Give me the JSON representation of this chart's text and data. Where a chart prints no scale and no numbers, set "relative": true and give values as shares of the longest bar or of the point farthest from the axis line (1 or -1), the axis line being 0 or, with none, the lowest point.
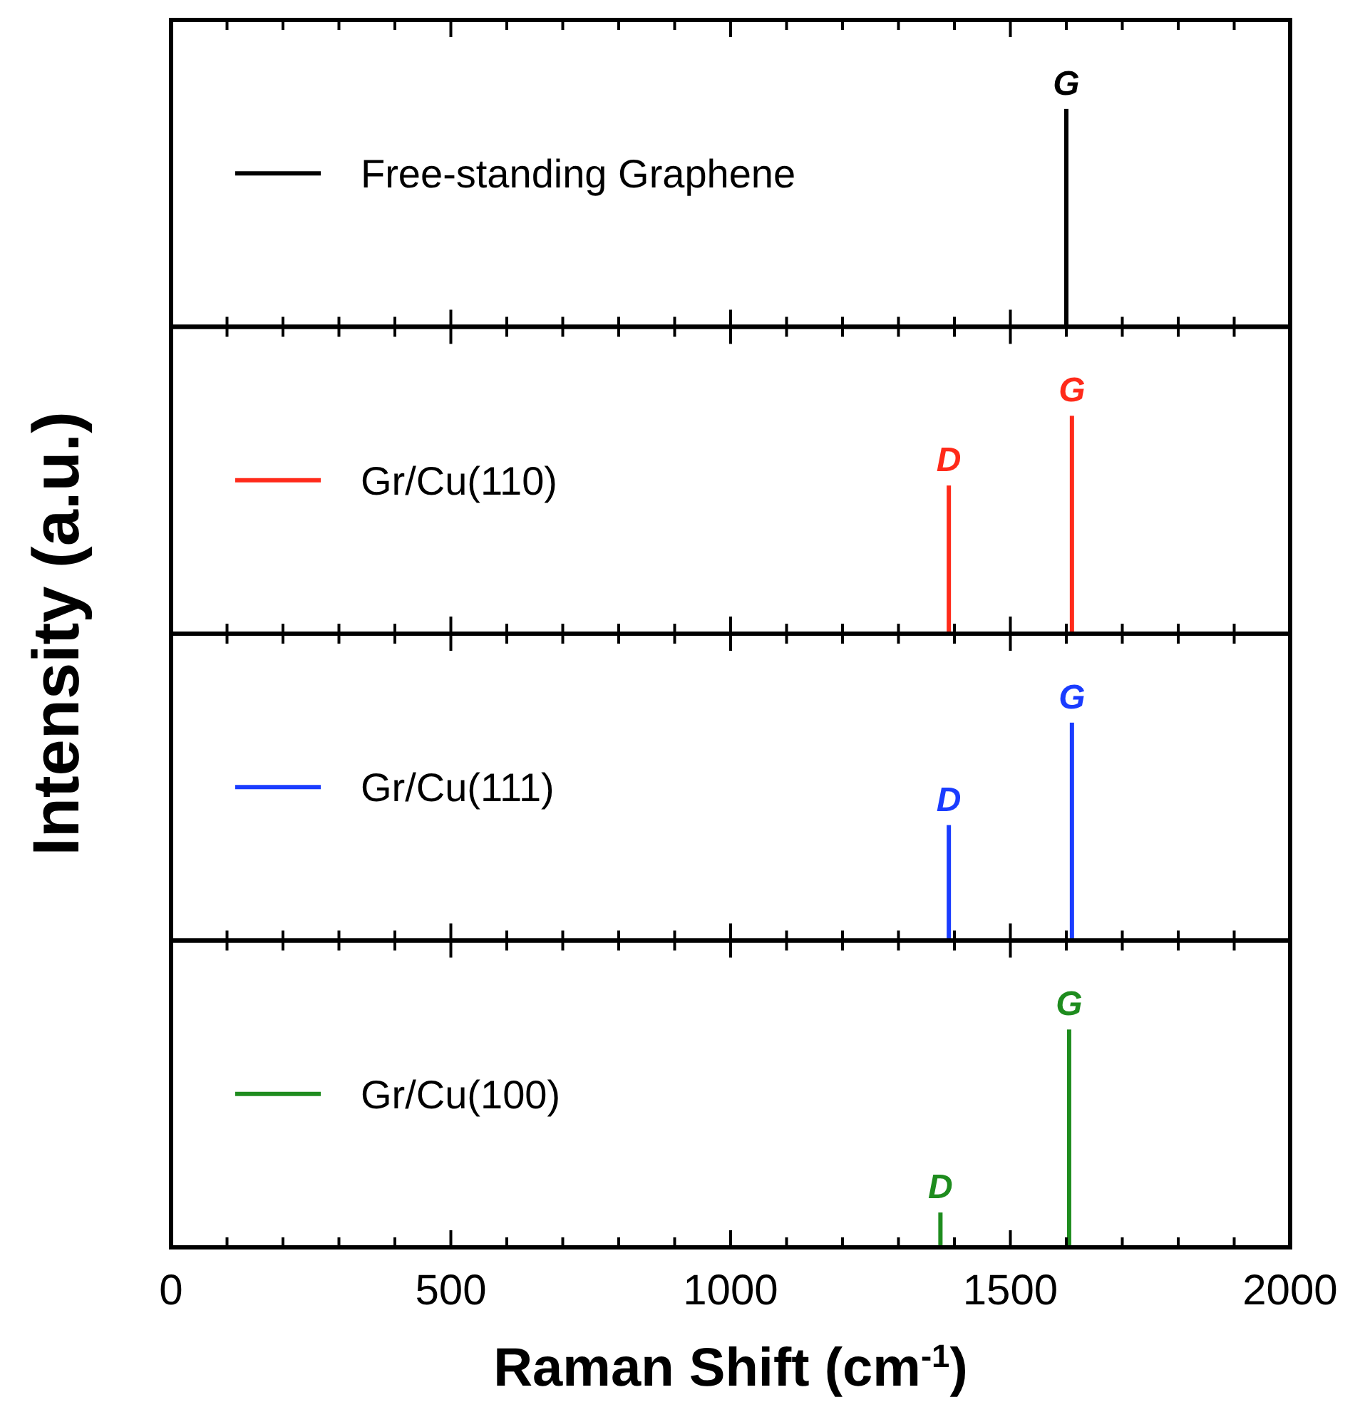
{
  "chart_data": [
    {
      "type": "bar",
      "relative": true,
      "x": [
        1600
      ],
      "series": [
        {
          "name": "Free-standing Graphene",
          "color": "#000000",
          "values": [
            1
          ]
        }
      ],
      "xlim": [
        0,
        2000
      ],
      "xticks": [
        0,
        {
          "value": 100,
          "label": null
        },
        {
          "value": 200,
          "label": null
        },
        {
          "value": 300,
          "label": null
        },
        {
          "value": 400,
          "label": null
        },
        500,
        {
          "value": 600,
          "label": null
        },
        {
          "value": 700,
          "label": null
        },
        {
          "value": 800,
          "label": null
        },
        {
          "value": 900,
          "label": null
        },
        1000,
        {
          "value": 1100,
          "label": null
        },
        {
          "value": 1200,
          "label": null
        },
        {
          "value": 1300,
          "label": null
        },
        {
          "value": 1400,
          "label": null
        },
        1500,
        {
          "value": 1600,
          "label": null
        },
        {
          "value": 1700,
          "label": null
        },
        {
          "value": 1800,
          "label": null
        },
        {
          "value": 1900,
          "label": null
        },
        2000
      ],
      "tick_labels": false,
      "legend": "left",
      "annotations": [
        {
          "text": "G",
          "x": 1600,
          "y": 1
        }
      ]
    },
    {
      "type": "bar",
      "relative": true,
      "x": [
        1390,
        1610
      ],
      "series": [
        {
          "name": "Gr/Cu(110)",
          "color": "#ff2a1a",
          "values": [
            0.68,
            1
          ]
        }
      ],
      "xlim": [
        0,
        2000
      ],
      "xticks": [
        0,
        {
          "value": 100,
          "label": null
        },
        {
          "value": 200,
          "label": null
        },
        {
          "value": 300,
          "label": null
        },
        {
          "value": 400,
          "label": null
        },
        500,
        {
          "value": 600,
          "label": null
        },
        {
          "value": 700,
          "label": null
        },
        {
          "value": 800,
          "label": null
        },
        {
          "value": 900,
          "label": null
        },
        1000,
        {
          "value": 1100,
          "label": null
        },
        {
          "value": 1200,
          "label": null
        },
        {
          "value": 1300,
          "label": null
        },
        {
          "value": 1400,
          "label": null
        },
        1500,
        {
          "value": 1600,
          "label": null
        },
        {
          "value": 1700,
          "label": null
        },
        {
          "value": 1800,
          "label": null
        },
        {
          "value": 1900,
          "label": null
        },
        2000
      ],
      "tick_labels": false,
      "legend": "left",
      "annotations": [
        {
          "text": "D",
          "x": 1390,
          "y": 0.68
        },
        {
          "text": "G",
          "x": 1610,
          "y": 1
        }
      ]
    },
    {
      "type": "bar",
      "relative": true,
      "x": [
        1390,
        1610
      ],
      "series": [
        {
          "name": "Gr/Cu(111)",
          "color": "#1a3cff",
          "values": [
            0.53,
            1
          ]
        }
      ],
      "xlim": [
        0,
        2000
      ],
      "xticks": [
        0,
        {
          "value": 100,
          "label": null
        },
        {
          "value": 200,
          "label": null
        },
        {
          "value": 300,
          "label": null
        },
        {
          "value": 400,
          "label": null
        },
        500,
        {
          "value": 600,
          "label": null
        },
        {
          "value": 700,
          "label": null
        },
        {
          "value": 800,
          "label": null
        },
        {
          "value": 900,
          "label": null
        },
        1000,
        {
          "value": 1100,
          "label": null
        },
        {
          "value": 1200,
          "label": null
        },
        {
          "value": 1300,
          "label": null
        },
        {
          "value": 1400,
          "label": null
        },
        1500,
        {
          "value": 1600,
          "label": null
        },
        {
          "value": 1700,
          "label": null
        },
        {
          "value": 1800,
          "label": null
        },
        {
          "value": 1900,
          "label": null
        },
        2000
      ],
      "tick_labels": false,
      "legend": "left",
      "annotations": [
        {
          "text": "D",
          "x": 1390,
          "y": 0.53
        },
        {
          "text": "G",
          "x": 1610,
          "y": 1
        }
      ]
    },
    {
      "type": "bar",
      "relative": true,
      "x": [
        1375,
        1605
      ],
      "series": [
        {
          "name": "Gr/Cu(100)",
          "color": "#1e8c1e",
          "values": [
            0.16,
            1
          ]
        }
      ],
      "xlim": [
        0,
        2000
      ],
      "xticks": [
        0,
        {
          "value": 100,
          "label": null
        },
        {
          "value": 200,
          "label": null
        },
        {
          "value": 300,
          "label": null
        },
        {
          "value": 400,
          "label": null
        },
        500,
        {
          "value": 600,
          "label": null
        },
        {
          "value": 700,
          "label": null
        },
        {
          "value": 800,
          "label": null
        },
        {
          "value": 900,
          "label": null
        },
        1000,
        {
          "value": 1100,
          "label": null
        },
        {
          "value": 1200,
          "label": null
        },
        {
          "value": 1300,
          "label": null
        },
        {
          "value": 1400,
          "label": null
        },
        1500,
        {
          "value": 1600,
          "label": null
        },
        {
          "value": 1700,
          "label": null
        },
        {
          "value": 1800,
          "label": null
        },
        {
          "value": 1900,
          "label": null
        },
        2000
      ],
      "tick_labels": "x",
      "legend": "left",
      "xlabel": "Raman Shift (cm$^{-1}$)",
      "ylabel": "Intensity (a.u.)",
      "annotations": [
        {
          "text": "D",
          "x": 1375,
          "y": 0.16
        },
        {
          "text": "G",
          "x": 1605,
          "y": 1
        }
      ]
    }
  ]
}
